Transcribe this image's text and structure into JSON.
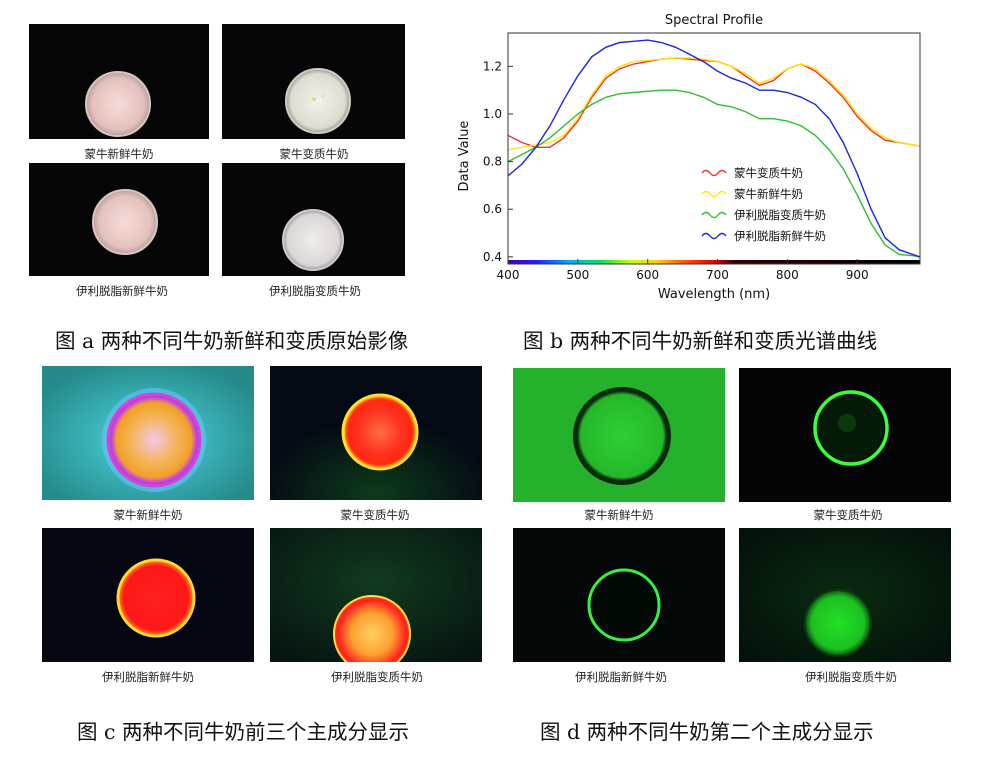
{
  "colors": {
    "red_series": "#ff2a2a",
    "yellow_series": "#ffe60a",
    "green_series": "#2fbf2f",
    "blue_series": "#1a25e6"
  },
  "fig_a": {
    "caption": "图 a  两种不同牛奶新鲜和变质原始影像",
    "labels": [
      "蒙牛新鲜牛奶",
      "蒙牛变质牛奶",
      "伊利脱脂新鲜牛奶",
      "伊利脱脂变质牛奶"
    ]
  },
  "fig_b": {
    "caption": "图 b 两种不同牛奶新鲜和变质光谱曲线"
  },
  "fig_c": {
    "caption": "图 c 两种不同牛奶前三个主成分显示",
    "labels": [
      "蒙牛新鲜牛奶",
      "蒙牛变质牛奶",
      "伊利脱脂新鲜牛奶",
      "伊利脱脂变质牛奶"
    ]
  },
  "fig_d": {
    "caption": "图 d 两种不同牛奶第二个主成分显示",
    "labels": [
      "蒙牛新鲜牛奶",
      "蒙牛变质牛奶",
      "伊利脱脂新鲜牛奶",
      "伊利脱脂变质牛奶"
    ]
  },
  "chart_data": {
    "type": "line",
    "title": "Spectral Profile",
    "xlabel": "Wavelength (nm)",
    "ylabel": "Data Value",
    "xlim": [
      400,
      990
    ],
    "ylim": [
      0.37,
      1.34
    ],
    "xticks": [
      400,
      500,
      600,
      700,
      800,
      900
    ],
    "yticks": [
      0.4,
      0.6,
      0.8,
      1.0,
      1.2
    ],
    "legend_position": "center-right",
    "x": [
      400,
      420,
      440,
      460,
      480,
      500,
      520,
      540,
      560,
      580,
      600,
      620,
      640,
      660,
      680,
      700,
      720,
      740,
      760,
      780,
      800,
      820,
      840,
      860,
      880,
      900,
      920,
      940,
      960,
      980,
      990
    ],
    "series": [
      {
        "name": "蒙牛变质牛奶",
        "color": "#ff2a2a",
        "values": [
          0.91,
          0.88,
          0.86,
          0.86,
          0.9,
          0.97,
          1.07,
          1.15,
          1.19,
          1.21,
          1.22,
          1.23,
          1.235,
          1.23,
          1.225,
          1.22,
          1.2,
          1.16,
          1.12,
          1.14,
          1.19,
          1.21,
          1.18,
          1.13,
          1.07,
          0.99,
          0.93,
          0.89,
          0.88,
          0.87,
          0.865
        ]
      },
      {
        "name": "蒙牛新鲜牛奶",
        "color": "#ffe60a",
        "values": [
          0.85,
          0.86,
          0.87,
          0.88,
          0.91,
          0.98,
          1.08,
          1.16,
          1.2,
          1.22,
          1.225,
          1.23,
          1.235,
          1.235,
          1.23,
          1.22,
          1.2,
          1.17,
          1.13,
          1.15,
          1.19,
          1.21,
          1.19,
          1.14,
          1.08,
          1.0,
          0.94,
          0.9,
          0.88,
          0.87,
          0.865
        ]
      },
      {
        "name": "伊利脱脂变质牛奶",
        "color": "#2fbf2f",
        "values": [
          0.8,
          0.83,
          0.86,
          0.9,
          0.95,
          1.0,
          1.04,
          1.07,
          1.085,
          1.09,
          1.095,
          1.1,
          1.1,
          1.09,
          1.07,
          1.04,
          1.03,
          1.01,
          0.98,
          0.98,
          0.97,
          0.95,
          0.91,
          0.85,
          0.77,
          0.66,
          0.54,
          0.45,
          0.41,
          0.405,
          0.4
        ]
      },
      {
        "name": "伊利脱脂新鲜牛奶",
        "color": "#1a25e6",
        "values": [
          0.74,
          0.79,
          0.86,
          0.95,
          1.06,
          1.16,
          1.24,
          1.28,
          1.3,
          1.305,
          1.31,
          1.3,
          1.28,
          1.25,
          1.22,
          1.18,
          1.15,
          1.13,
          1.1,
          1.1,
          1.09,
          1.07,
          1.04,
          0.98,
          0.88,
          0.75,
          0.6,
          0.48,
          0.43,
          0.41,
          0.4
        ]
      }
    ]
  }
}
